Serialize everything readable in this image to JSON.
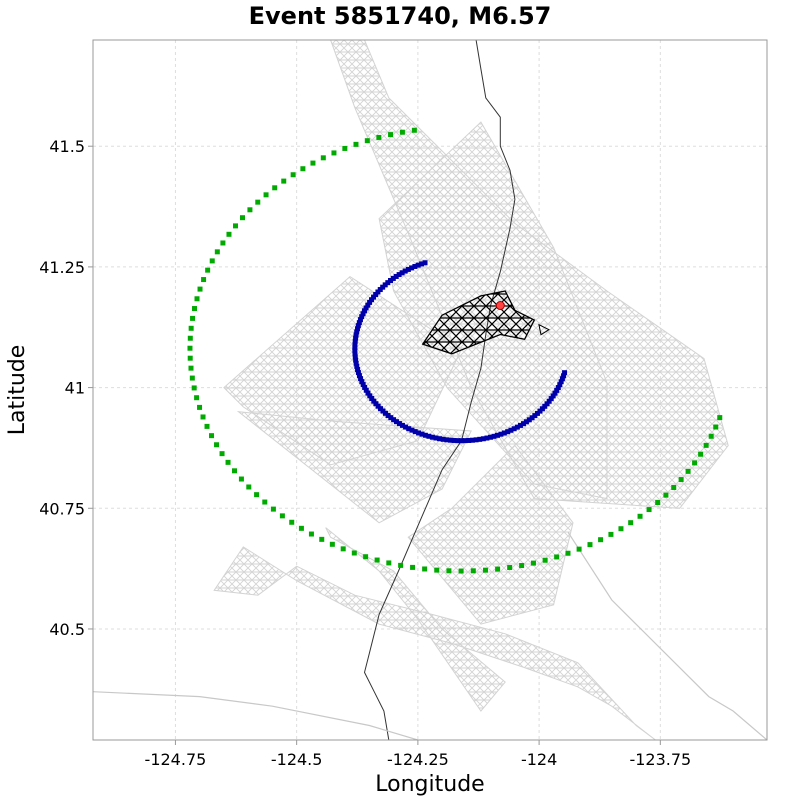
{
  "chart_data": {
    "type": "scatter",
    "title": "Event 5851740, M6.57",
    "xlabel": "Longitude",
    "ylabel": "Latitude",
    "xlim": [
      -124.92,
      -123.53
    ],
    "ylim": [
      40.27,
      41.72
    ],
    "xticks": [
      -124.75,
      -124.5,
      -124.25,
      -124,
      -123.75
    ],
    "xtick_labels": [
      "-124.75",
      "-124.5",
      "-124.25",
      "-124",
      "-123.75"
    ],
    "yticks": [
      40.5,
      40.75,
      41,
      41.25,
      41.5
    ],
    "ytick_labels": [
      "40.5",
      "40.75",
      "41",
      "41.25",
      "41.5"
    ],
    "grid": true,
    "legend": "none",
    "colors": {
      "fault_mesh": "#d3d3d3",
      "rupture_mesh": "#000000",
      "coastline": "#333333",
      "inland_lines": "#c8c8c8",
      "blue_arc": "#0000aa",
      "green_arc": "#00aa00",
      "epicenter": "#ff4444",
      "grid": "#dddddd"
    },
    "fault_sections": [
      {
        "polygon": [
          [
            -124.43,
            41.72
          ],
          [
            -124.36,
            41.72
          ],
          [
            -124.31,
            41.6
          ],
          [
            -124.05,
            41.34
          ],
          [
            -123.86,
            41.2
          ],
          [
            -123.66,
            41.06
          ],
          [
            -123.61,
            40.88
          ],
          [
            -123.71,
            40.75
          ],
          [
            -124.01,
            40.77
          ],
          [
            -124.14,
            41.0
          ],
          [
            -124.27,
            41.32
          ],
          [
            -124.38,
            41.58
          ]
        ]
      },
      {
        "polygon": [
          [
            -124.33,
            41.35
          ],
          [
            -124.12,
            41.55
          ],
          [
            -123.97,
            41.29
          ],
          [
            -123.86,
            41.01
          ],
          [
            -123.86,
            40.77
          ],
          [
            -124.01,
            40.8
          ],
          [
            -124.19,
            41.0
          ],
          [
            -124.3,
            41.2
          ]
        ]
      },
      {
        "polygon": [
          [
            -124.65,
            41.0
          ],
          [
            -124.39,
            41.23
          ],
          [
            -124.16,
            41.08
          ],
          [
            -124.25,
            40.89
          ],
          [
            -124.43,
            40.84
          ],
          [
            -124.61,
            40.96
          ]
        ]
      },
      {
        "polygon": [
          [
            -124.62,
            40.95
          ],
          [
            -124.33,
            40.72
          ],
          [
            -124.2,
            40.79
          ],
          [
            -124.14,
            40.91
          ],
          [
            -124.42,
            40.93
          ]
        ]
      },
      {
        "polygon": [
          [
            -124.27,
            40.69
          ],
          [
            -124.12,
            40.51
          ],
          [
            -123.97,
            40.55
          ],
          [
            -123.93,
            40.72
          ],
          [
            -124.05,
            40.88
          ],
          [
            -124.18,
            40.75
          ]
        ]
      },
      {
        "polygon": [
          [
            -124.67,
            40.58
          ],
          [
            -124.61,
            40.67
          ],
          [
            -124.5,
            40.6
          ],
          [
            -124.33,
            40.51
          ],
          [
            -124.18,
            40.47
          ],
          [
            -124.03,
            40.42
          ],
          [
            -123.92,
            40.38
          ],
          [
            -123.85,
            40.34
          ],
          [
            -123.76,
            40.27
          ],
          [
            -123.8,
            40.3
          ],
          [
            -123.92,
            40.43
          ],
          [
            -124.07,
            40.49
          ],
          [
            -124.22,
            40.53
          ],
          [
            -124.38,
            40.57
          ],
          [
            -124.5,
            40.63
          ],
          [
            -124.58,
            40.57
          ]
        ]
      },
      {
        "polygon": [
          [
            -124.44,
            40.71
          ],
          [
            -124.33,
            40.62
          ],
          [
            -124.25,
            40.52
          ],
          [
            -124.12,
            40.33
          ],
          [
            -124.07,
            40.39
          ],
          [
            -124.2,
            40.5
          ],
          [
            -124.3,
            40.62
          ],
          [
            -124.43,
            40.69
          ]
        ]
      }
    ],
    "rupture_mesh": {
      "polygon": [
        [
          -124.24,
          41.09
        ],
        [
          -124.2,
          41.15
        ],
        [
          -124.12,
          41.19
        ],
        [
          -124.07,
          41.2
        ],
        [
          -124.05,
          41.16
        ],
        [
          -124.01,
          41.14
        ],
        [
          -124.03,
          41.1
        ],
        [
          -124.08,
          41.11
        ],
        [
          -124.13,
          41.09
        ],
        [
          -124.18,
          41.07
        ]
      ]
    },
    "epicenter": [
      -124.08,
      41.17
    ],
    "arc_blue": {
      "center": [
        -124.16,
        41.08
      ],
      "radius_lon": 0.22,
      "radius_lat": 0.19,
      "start_deg": 110,
      "end_deg": 345,
      "count": 120
    },
    "arc_green": {
      "center": [
        -124.16,
        41.08
      ],
      "radius_lon": 0.56,
      "radius_lat": 0.46,
      "start_deg": 100,
      "end_deg": 342,
      "count": 95
    },
    "coastline": [
      [
        -124.13,
        41.72
      ],
      [
        -124.12,
        41.66
      ],
      [
        -124.11,
        41.6
      ],
      [
        -124.08,
        41.56
      ],
      [
        -124.08,
        41.5
      ],
      [
        -124.06,
        41.45
      ],
      [
        -124.05,
        41.39
      ],
      [
        -124.06,
        41.33
      ],
      [
        -124.08,
        41.24
      ],
      [
        -124.1,
        41.17
      ],
      [
        -124.11,
        41.11
      ],
      [
        -124.12,
        41.04
      ],
      [
        -124.14,
        40.97
      ],
      [
        -124.16,
        40.89
      ],
      [
        -124.2,
        40.83
      ],
      [
        -124.23,
        40.76
      ],
      [
        -124.26,
        40.69
      ],
      [
        -124.29,
        40.62
      ],
      [
        -124.33,
        40.53
      ],
      [
        -124.35,
        40.45
      ],
      [
        -124.36,
        40.41
      ],
      [
        -124.34,
        40.37
      ],
      [
        -124.32,
        40.33
      ],
      [
        -124.31,
        40.27
      ]
    ],
    "inland_lines": [
      [
        [
          -124.92,
          40.37
        ],
        [
          -124.7,
          40.36
        ],
        [
          -124.55,
          40.34
        ],
        [
          -124.35,
          40.3
        ],
        [
          -124.25,
          40.27
        ]
      ],
      [
        [
          -123.94,
          40.7
        ],
        [
          -123.85,
          40.56
        ],
        [
          -123.75,
          40.46
        ],
        [
          -123.65,
          40.36
        ],
        [
          -123.6,
          40.33
        ],
        [
          -123.53,
          40.27
        ]
      ]
    ]
  }
}
